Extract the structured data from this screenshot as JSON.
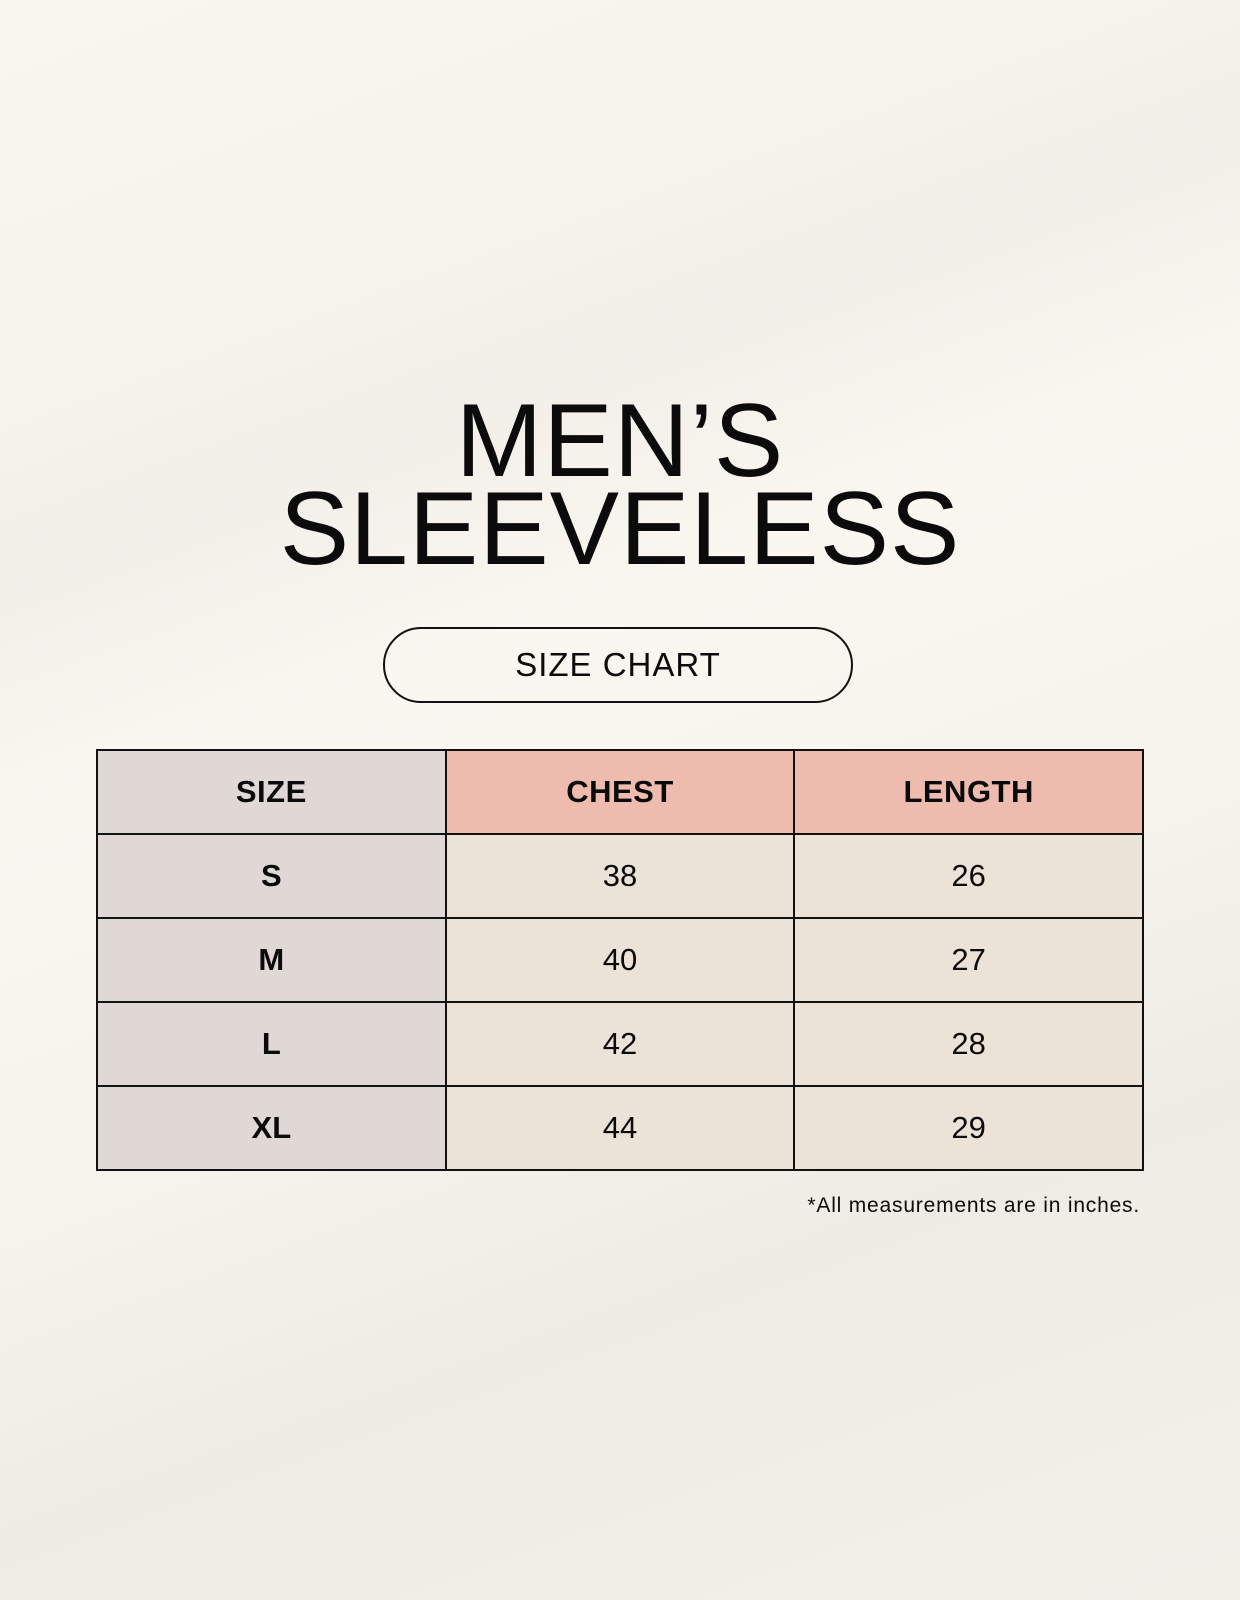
{
  "title": {
    "line1": "MEN’S",
    "line2": "SLEEVELESS"
  },
  "subtitle": "SIZE CHART",
  "colors": {
    "size_column": "#e0d8d4",
    "header_accent": "#eebcaf",
    "cell": "#ebe2d8",
    "text": "#0b0b0b"
  },
  "table": {
    "headers": [
      "SIZE",
      "CHEST",
      "LENGTH"
    ],
    "rows": [
      [
        "S",
        "38",
        "26"
      ],
      [
        "M",
        "40",
        "27"
      ],
      [
        "L",
        "42",
        "28"
      ],
      [
        "XL",
        "44",
        "29"
      ]
    ]
  },
  "footnote": "*All measurements are in inches."
}
